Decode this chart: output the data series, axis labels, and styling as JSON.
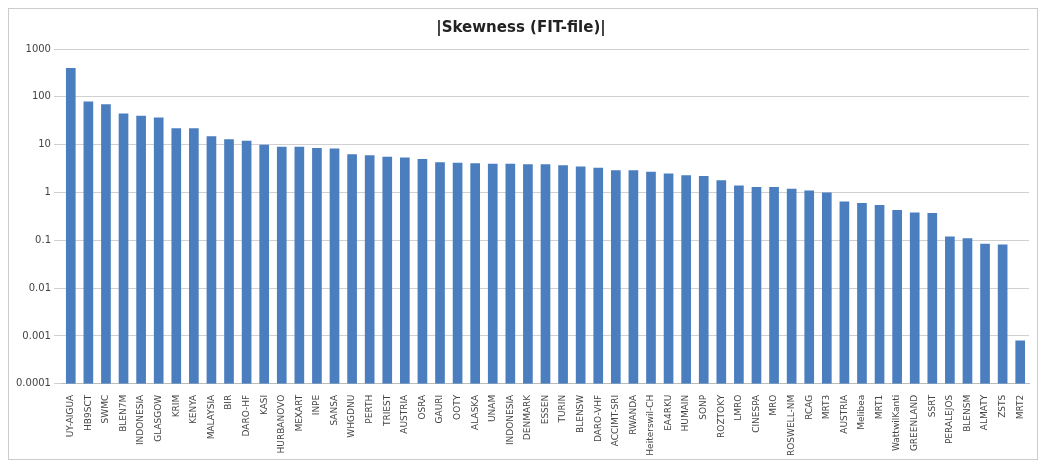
{
  "chart_data": {
    "type": "bar",
    "title": "|Skewness (FIT-file)|",
    "categories": [
      "UY-AIGUA",
      "HB9SCT",
      "SWMC",
      "BLEN7M",
      "INDONESIA",
      "GLASGOW",
      "KRIM",
      "KENYA",
      "MALAYSIA",
      "BIR",
      "DARO-HF",
      "KASI",
      "HURBANOVO",
      "MEXART",
      "INPE",
      "SANSA",
      "WHGDNU",
      "PERTH",
      "TRIEST",
      "AUSTRIA",
      "OSRA",
      "GAURI",
      "OOTY",
      "ALASKA",
      "UNAM",
      "INDONESIA",
      "DENMARK",
      "ESSEN",
      "TURIN",
      "BLENSW",
      "DARO-VHF",
      "ACCIMT-SRI",
      "RWANDA",
      "Heiterswil-CH",
      "EA4RKU",
      "HUMAIN",
      "SONP",
      "ROZTOKY",
      "LMRO",
      "CINESPA",
      "MRO",
      "ROSWELL-NM",
      "RCAG",
      "MRT3",
      "AUSTRIA",
      "Melibea",
      "MRT1",
      "WattwilKanti",
      "GREENLAND",
      "SSRT",
      "PERALEJOS",
      "BLENSM",
      "ALMATY",
      "ZSTS",
      "MRT2"
    ],
    "values": [
      400,
      80,
      70,
      45,
      40,
      37,
      22,
      22,
      15,
      13,
      12,
      10,
      9,
      9,
      8.5,
      8.3,
      6.3,
      6,
      5.6,
      5.4,
      5,
      4.3,
      4.2,
      4.1,
      4,
      4,
      3.9,
      3.9,
      3.7,
      3.5,
      3.3,
      2.9,
      2.9,
      2.7,
      2.5,
      2.3,
      2.2,
      1.8,
      1.4,
      1.3,
      1.3,
      1.2,
      1.1,
      1,
      0.65,
      0.6,
      0.55,
      0.43,
      0.38,
      0.37,
      0.12,
      0.11,
      0.085,
      0.082,
      0.0008
    ],
    "color": "#4a7ebf",
    "log": true,
    "ylim": [
      0.0001,
      1000
    ],
    "yticks": [
      0.0001,
      0.001,
      0.01,
      0.1,
      1,
      10,
      100,
      1000
    ],
    "grid": "y",
    "legend": false
  }
}
